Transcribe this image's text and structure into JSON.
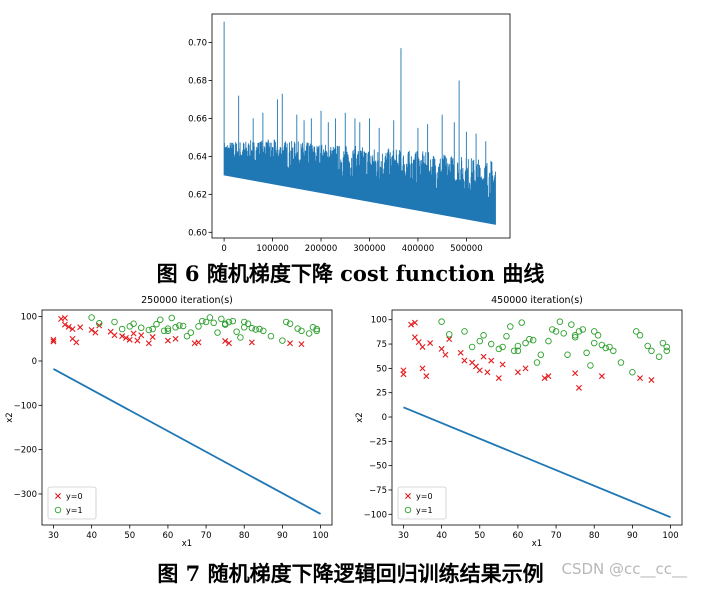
{
  "figure6": {
    "caption": "图 6 随机梯度下降 cost function 曲线",
    "chart_data": {
      "type": "line",
      "title": "",
      "xlabel": "",
      "ylabel": "",
      "xlim": [
        -25000,
        590000
      ],
      "ylim": [
        0.597,
        0.715
      ],
      "xticks": [
        0,
        100000,
        200000,
        300000,
        400000,
        500000
      ],
      "yticks": [
        0.6,
        0.62,
        0.64,
        0.66,
        0.68,
        0.7
      ],
      "xtick_labels": [
        "0",
        "100000",
        "200000",
        "300000",
        "400000",
        "500000"
      ],
      "ytick_labels": [
        "0.60",
        "0.62",
        "0.64",
        "0.66",
        "0.68",
        "0.70"
      ],
      "color": "#1f77b4",
      "x_end": 560000,
      "baseline": [
        [
          0,
          0.63
        ],
        [
          560000,
          0.604
        ]
      ],
      "band_top": [
        [
          0,
          0.648
        ],
        [
          100000,
          0.649
        ],
        [
          200000,
          0.647
        ],
        [
          300000,
          0.645
        ],
        [
          400000,
          0.643
        ],
        [
          500000,
          0.64
        ],
        [
          560000,
          0.638
        ]
      ],
      "spikes": [
        [
          0,
          0.711
        ],
        [
          30000,
          0.672
        ],
        [
          60000,
          0.66
        ],
        [
          80000,
          0.663
        ],
        [
          110000,
          0.67
        ],
        [
          120000,
          0.673
        ],
        [
          150000,
          0.662
        ],
        [
          165000,
          0.659
        ],
        [
          180000,
          0.66
        ],
        [
          200000,
          0.664
        ],
        [
          215000,
          0.658
        ],
        [
          230000,
          0.66
        ],
        [
          250000,
          0.663
        ],
        [
          270000,
          0.66
        ],
        [
          280000,
          0.658
        ],
        [
          300000,
          0.66
        ],
        [
          320000,
          0.655
        ],
        [
          350000,
          0.659
        ],
        [
          365000,
          0.697
        ],
        [
          400000,
          0.655
        ],
        [
          420000,
          0.657
        ],
        [
          450000,
          0.662
        ],
        [
          475000,
          0.658
        ],
        [
          485000,
          0.68
        ],
        [
          500000,
          0.653
        ],
        [
          520000,
          0.652
        ],
        [
          540000,
          0.648
        ]
      ]
    }
  },
  "figure7": {
    "caption": "图 7 随机梯度下降逻辑回归训练结果示例",
    "charts": [
      {
        "type": "scatter",
        "title": "250000 iteration(s)",
        "xlabel": "x1",
        "ylabel": "x2",
        "xlim": [
          27,
          103
        ],
        "ylim": [
          -370,
          115
        ],
        "xticks": [
          30,
          40,
          50,
          60,
          70,
          80,
          90,
          100
        ],
        "yticks": [
          -300,
          -200,
          -100,
          0,
          100
        ],
        "xtick_labels": [
          "30",
          "40",
          "50",
          "60",
          "70",
          "80",
          "90",
          "100"
        ],
        "ytick_labels": [
          "−300",
          "−200",
          "−100",
          "0",
          "100"
        ],
        "legend": [
          "y=0",
          "y=1"
        ],
        "legend_position": "lower-left",
        "line": [
          [
            30,
            -18
          ],
          [
            100,
            -345
          ]
        ],
        "points_y0": [
          [
            30,
            48
          ],
          [
            30,
            44
          ],
          [
            32,
            95
          ],
          [
            33,
            97
          ],
          [
            33,
            82
          ],
          [
            34,
            77
          ],
          [
            35,
            72
          ],
          [
            35,
            50
          ],
          [
            36,
            42
          ],
          [
            37,
            76
          ],
          [
            40,
            70
          ],
          [
            41,
            64
          ],
          [
            42,
            80
          ],
          [
            45,
            66
          ],
          [
            46,
            58
          ],
          [
            48,
            56
          ],
          [
            49,
            52
          ],
          [
            50,
            48
          ],
          [
            51,
            62
          ],
          [
            52,
            46
          ],
          [
            53,
            58
          ],
          [
            55,
            40
          ],
          [
            56,
            54
          ],
          [
            60,
            46
          ],
          [
            62,
            50
          ],
          [
            67,
            40
          ],
          [
            68,
            42
          ],
          [
            75,
            45
          ],
          [
            76,
            40
          ],
          [
            82,
            42
          ],
          [
            92,
            40
          ],
          [
            95,
            38
          ]
        ],
        "points_y1": [
          [
            40,
            98
          ],
          [
            42,
            85
          ],
          [
            46,
            88
          ],
          [
            48,
            72
          ],
          [
            50,
            78
          ],
          [
            51,
            84
          ],
          [
            53,
            75
          ],
          [
            55,
            70
          ],
          [
            56,
            72
          ],
          [
            57,
            83
          ],
          [
            58,
            93
          ],
          [
            59,
            68
          ],
          [
            60,
            68
          ],
          [
            60,
            73
          ],
          [
            61,
            97
          ],
          [
            62,
            76
          ],
          [
            63,
            80
          ],
          [
            64,
            79
          ],
          [
            65,
            56
          ],
          [
            66,
            64
          ],
          [
            68,
            78
          ],
          [
            69,
            90
          ],
          [
            70,
            88
          ],
          [
            71,
            98
          ],
          [
            72,
            86
          ],
          [
            73,
            64
          ],
          [
            74,
            95
          ],
          [
            75,
            84
          ],
          [
            75,
            82
          ],
          [
            76,
            88
          ],
          [
            77,
            90
          ],
          [
            78,
            66
          ],
          [
            79,
            53
          ],
          [
            80,
            88
          ],
          [
            80,
            76
          ],
          [
            81,
            84
          ],
          [
            82,
            74
          ],
          [
            83,
            71
          ],
          [
            84,
            72
          ],
          [
            85,
            68
          ],
          [
            87,
            56
          ],
          [
            90,
            46
          ],
          [
            91,
            88
          ],
          [
            92,
            84
          ],
          [
            94,
            73
          ],
          [
            95,
            68
          ],
          [
            97,
            62
          ],
          [
            98,
            76
          ],
          [
            99,
            72
          ],
          [
            99,
            68
          ]
        ]
      },
      {
        "type": "scatter",
        "title": "450000 iteration(s)",
        "xlabel": "x1",
        "ylabel": "x2",
        "xlim": [
          27,
          103
        ],
        "ylim": [
          -111,
          110
        ],
        "xticks": [
          30,
          40,
          50,
          60,
          70,
          80,
          90,
          100
        ],
        "yticks": [
          -100,
          -75,
          -50,
          -25,
          0,
          25,
          50,
          75,
          100
        ],
        "xtick_labels": [
          "30",
          "40",
          "50",
          "60",
          "70",
          "80",
          "90",
          "100"
        ],
        "ytick_labels": [
          "−100",
          "−75",
          "−50",
          "−25",
          "0",
          "25",
          "50",
          "75",
          "100"
        ],
        "legend": [
          "y=0",
          "y=1"
        ],
        "legend_position": "lower-left",
        "line": [
          [
            30,
            10
          ],
          [
            100,
            -103
          ]
        ],
        "points_y0": [
          [
            30,
            48
          ],
          [
            30,
            44
          ],
          [
            32,
            95
          ],
          [
            33,
            97
          ],
          [
            33,
            82
          ],
          [
            34,
            77
          ],
          [
            35,
            72
          ],
          [
            35,
            50
          ],
          [
            36,
            42
          ],
          [
            37,
            76
          ],
          [
            40,
            70
          ],
          [
            41,
            64
          ],
          [
            42,
            80
          ],
          [
            45,
            66
          ],
          [
            46,
            58
          ],
          [
            48,
            56
          ],
          [
            49,
            52
          ],
          [
            50,
            48
          ],
          [
            51,
            62
          ],
          [
            52,
            46
          ],
          [
            53,
            58
          ],
          [
            55,
            40
          ],
          [
            56,
            54
          ],
          [
            60,
            46
          ],
          [
            62,
            50
          ],
          [
            67,
            40
          ],
          [
            68,
            42
          ],
          [
            75,
            45
          ],
          [
            76,
            30
          ],
          [
            82,
            42
          ],
          [
            92,
            40
          ],
          [
            95,
            38
          ]
        ],
        "points_y1": [
          [
            40,
            98
          ],
          [
            42,
            85
          ],
          [
            46,
            88
          ],
          [
            48,
            72
          ],
          [
            50,
            78
          ],
          [
            51,
            84
          ],
          [
            53,
            75
          ],
          [
            55,
            70
          ],
          [
            56,
            72
          ],
          [
            57,
            83
          ],
          [
            58,
            93
          ],
          [
            59,
            68
          ],
          [
            60,
            68
          ],
          [
            60,
            73
          ],
          [
            61,
            97
          ],
          [
            62,
            76
          ],
          [
            63,
            80
          ],
          [
            64,
            79
          ],
          [
            65,
            56
          ],
          [
            66,
            64
          ],
          [
            68,
            78
          ],
          [
            69,
            90
          ],
          [
            70,
            88
          ],
          [
            71,
            98
          ],
          [
            72,
            86
          ],
          [
            73,
            64
          ],
          [
            74,
            95
          ],
          [
            75,
            84
          ],
          [
            75,
            82
          ],
          [
            76,
            88
          ],
          [
            77,
            90
          ],
          [
            78,
            66
          ],
          [
            79,
            53
          ],
          [
            80,
            88
          ],
          [
            80,
            76
          ],
          [
            81,
            84
          ],
          [
            82,
            74
          ],
          [
            83,
            71
          ],
          [
            84,
            72
          ],
          [
            85,
            68
          ],
          [
            87,
            56
          ],
          [
            90,
            46
          ],
          [
            91,
            88
          ],
          [
            92,
            84
          ],
          [
            94,
            73
          ],
          [
            95,
            68
          ],
          [
            97,
            62
          ],
          [
            98,
            76
          ],
          [
            99,
            72
          ],
          [
            99,
            68
          ]
        ]
      }
    ]
  },
  "watermark": "CSDN @cc__cc__",
  "colors": {
    "line": "#1f77b4",
    "class0": "#e41a1c",
    "class1": "#2ca02c"
  }
}
